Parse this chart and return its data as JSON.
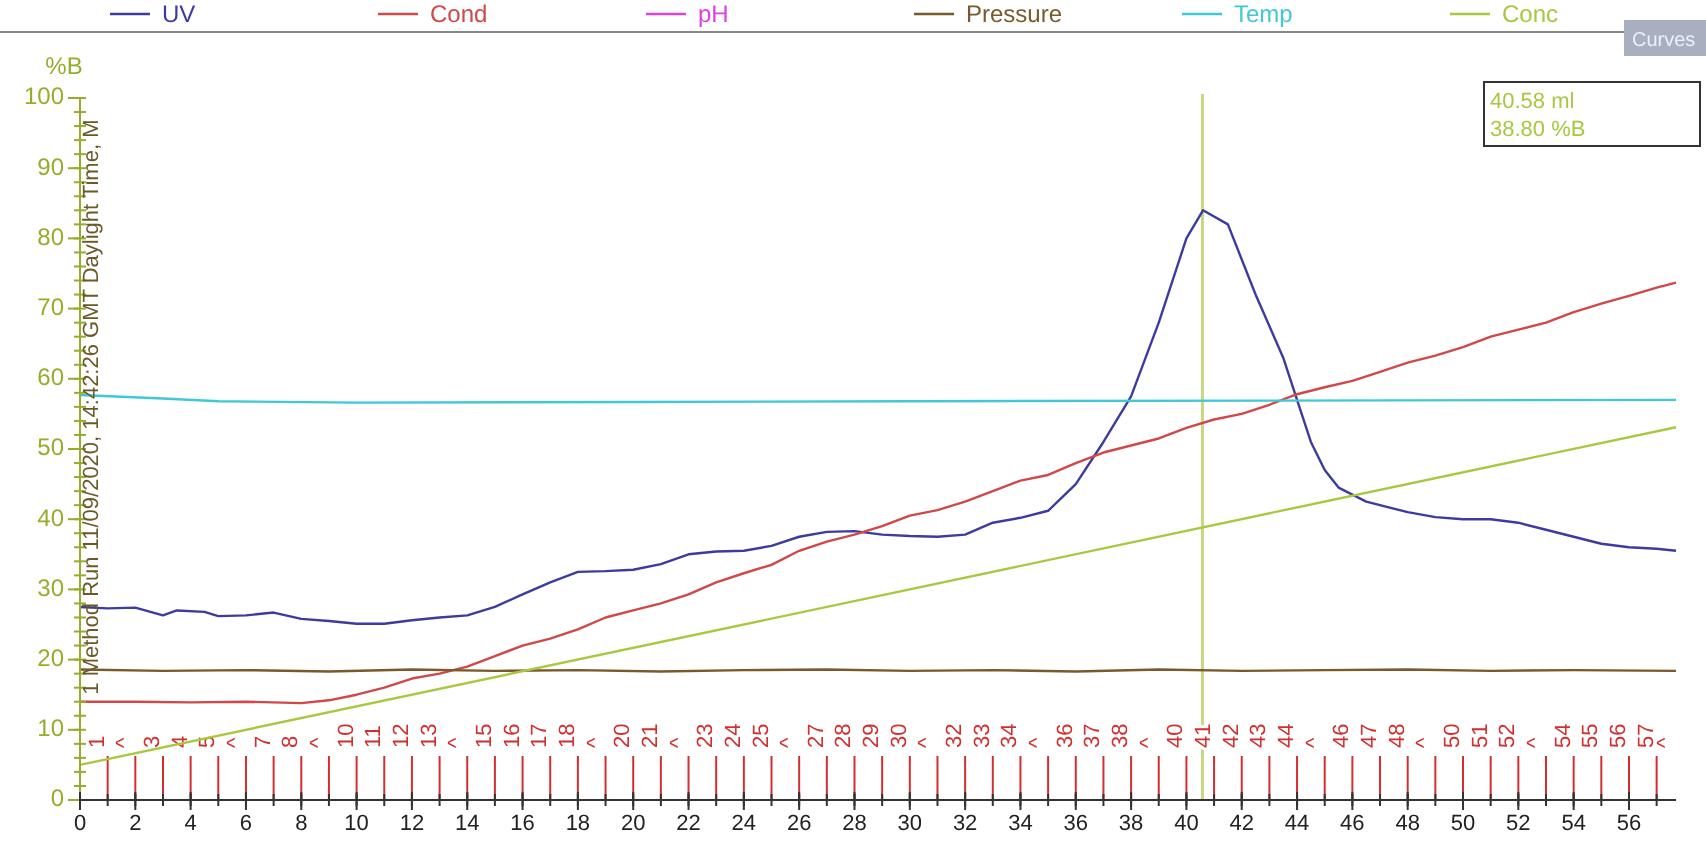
{
  "chart_data": {
    "type": "line",
    "ylabel": "%B",
    "xlim": [
      0,
      57.7
    ],
    "ylim": [
      0,
      100
    ],
    "xticks": [
      0,
      2,
      4,
      6,
      8,
      10,
      12,
      14,
      16,
      18,
      20,
      22,
      24,
      26,
      28,
      30,
      32,
      34,
      36,
      38,
      40,
      42,
      44,
      46,
      48,
      50,
      52,
      54,
      56
    ],
    "yticks": [
      0,
      10,
      20,
      30,
      40,
      50,
      60,
      70,
      80,
      90,
      100
    ],
    "legend": "top",
    "grid": false,
    "marker": "none",
    "line_style": "solid",
    "series": [
      {
        "name": "UV",
        "color": "#3c3ca0",
        "x": [
          0,
          1,
          2,
          3,
          3.5,
          4.5,
          5,
          6,
          7,
          8,
          9,
          10,
          11,
          12,
          13,
          14,
          15,
          16,
          17,
          18,
          19,
          20,
          21,
          22,
          23,
          24,
          25,
          26,
          27,
          28,
          29,
          30,
          31,
          32,
          33,
          34,
          35,
          36,
          37,
          38,
          39,
          40,
          40.6,
          41.5,
          42.5,
          43.5,
          44,
          44.5,
          45,
          45.5,
          46.5,
          48,
          49,
          50,
          51,
          52,
          53,
          54,
          55,
          56,
          57,
          57.7
        ],
        "values": [
          27.5,
          27.3,
          27.4,
          26.3,
          27,
          26.8,
          26.2,
          26.3,
          26.7,
          25.8,
          25.5,
          25.1,
          25.1,
          25.6,
          26,
          26.3,
          27.5,
          29.3,
          31,
          32.5,
          32.6,
          32.8,
          33.6,
          35,
          35.4,
          35.5,
          36.2,
          37.5,
          38.2,
          38.3,
          37.8,
          37.6,
          37.5,
          37.8,
          39.5,
          40.2,
          41.2,
          45,
          51,
          57.5,
          68,
          80,
          84,
          82,
          72,
          63,
          57,
          51,
          47,
          44.5,
          42.5,
          41,
          40.3,
          40,
          40,
          39.5,
          38.5,
          37.5,
          36.5,
          36,
          35.8,
          35.5
        ]
      },
      {
        "name": "Cond",
        "color": "#d04848",
        "x": [
          0,
          2,
          4,
          6,
          8,
          9,
          10,
          11,
          12,
          13,
          14,
          15,
          16,
          17,
          18,
          19,
          20,
          21,
          22,
          23,
          24,
          25,
          26,
          27,
          28,
          29,
          30,
          31,
          32,
          33,
          34,
          35,
          36,
          37,
          38,
          39,
          40,
          41,
          42,
          43,
          44,
          45,
          46,
          47,
          48,
          49,
          50,
          51,
          52,
          53,
          54,
          55,
          56,
          57,
          57.7
        ],
        "values": [
          14,
          14,
          13.9,
          14,
          13.8,
          14.2,
          15,
          16,
          17.3,
          18,
          19,
          20.5,
          22,
          23,
          24.3,
          26,
          27,
          28,
          29.3,
          31,
          32.3,
          33.5,
          35.5,
          36.8,
          37.8,
          39,
          40.5,
          41.3,
          42.5,
          44,
          45.5,
          46.3,
          48,
          49.5,
          50.5,
          51.5,
          53,
          54.2,
          55,
          56.3,
          57.8,
          58.8,
          59.7,
          61,
          62.3,
          63.3,
          64.5,
          66,
          67,
          68,
          69.5,
          70.7,
          71.8,
          73,
          73.7
        ]
      },
      {
        "name": "pH",
        "color": "#e040e0"
      },
      {
        "name": "Pressure",
        "color": "#7a5a2a",
        "x": [
          0,
          3,
          6,
          9,
          12,
          15,
          18,
          21,
          24,
          27,
          30,
          33,
          36,
          39,
          42,
          45,
          48,
          51,
          54,
          57.7
        ],
        "values": [
          18.6,
          18.4,
          18.5,
          18.3,
          18.6,
          18.4,
          18.5,
          18.3,
          18.5,
          18.6,
          18.4,
          18.5,
          18.3,
          18.6,
          18.4,
          18.5,
          18.6,
          18.4,
          18.5,
          18.4
        ]
      },
      {
        "name": "Temp",
        "color": "#40c8d8",
        "x": [
          0,
          3,
          5,
          10,
          20,
          30,
          57.7
        ],
        "values": [
          57.7,
          57.2,
          56.8,
          56.6,
          56.7,
          56.8,
          57
        ]
      },
      {
        "name": "Conc",
        "color": "#a8c840",
        "x": [
          0,
          57.7
        ],
        "values": [
          5,
          53.1
        ]
      }
    ],
    "ref_lines": [
      {
        "axis": "x",
        "value": 40.58,
        "color": "#c8d880"
      },
      {
        "axis": "x",
        "value": 1,
        "label": "1",
        "color": "#d03030"
      },
      {
        "axis": "x",
        "value": 2,
        "label": "^",
        "color": "#d03030"
      },
      {
        "axis": "x",
        "value": 3,
        "label": "3",
        "color": "#d03030"
      },
      {
        "axis": "x",
        "value": 4,
        "label": "4",
        "color": "#d03030"
      },
      {
        "axis": "x",
        "value": 5,
        "label": "5",
        "color": "#d03030"
      },
      {
        "axis": "x",
        "value": 6,
        "label": "^",
        "color": "#d03030"
      },
      {
        "axis": "x",
        "value": 7,
        "label": "7",
        "color": "#d03030"
      },
      {
        "axis": "x",
        "value": 8,
        "label": "8",
        "color": "#d03030"
      },
      {
        "axis": "x",
        "value": 9,
        "label": "^",
        "color": "#d03030"
      },
      {
        "axis": "x",
        "value": 10,
        "label": "10",
        "color": "#d03030"
      },
      {
        "axis": "x",
        "value": 11,
        "label": "11",
        "color": "#d03030"
      },
      {
        "axis": "x",
        "value": 12,
        "label": "12",
        "color": "#d03030"
      },
      {
        "axis": "x",
        "value": 13,
        "label": "13",
        "color": "#d03030"
      },
      {
        "axis": "x",
        "value": 14,
        "label": "^",
        "color": "#d03030"
      },
      {
        "axis": "x",
        "value": 15,
        "label": "15",
        "color": "#d03030"
      },
      {
        "axis": "x",
        "value": 16,
        "label": "16",
        "color": "#d03030"
      },
      {
        "axis": "x",
        "value": 17,
        "label": "17",
        "color": "#d03030"
      },
      {
        "axis": "x",
        "value": 18,
        "label": "18",
        "color": "#d03030"
      },
      {
        "axis": "x",
        "value": 19,
        "label": "^",
        "color": "#d03030"
      },
      {
        "axis": "x",
        "value": 20,
        "label": "20",
        "color": "#d03030"
      },
      {
        "axis": "x",
        "value": 21,
        "label": "21",
        "color": "#d03030"
      },
      {
        "axis": "x",
        "value": 22,
        "label": "^",
        "color": "#d03030"
      },
      {
        "axis": "x",
        "value": 23,
        "label": "23",
        "color": "#d03030"
      },
      {
        "axis": "x",
        "value": 24,
        "label": "24",
        "color": "#d03030"
      },
      {
        "axis": "x",
        "value": 25,
        "label": "25",
        "color": "#d03030"
      },
      {
        "axis": "x",
        "value": 26,
        "label": "^",
        "color": "#d03030"
      },
      {
        "axis": "x",
        "value": 27,
        "label": "27",
        "color": "#d03030"
      },
      {
        "axis": "x",
        "value": 28,
        "label": "28",
        "color": "#d03030"
      },
      {
        "axis": "x",
        "value": 29,
        "label": "29",
        "color": "#d03030"
      },
      {
        "axis": "x",
        "value": 30,
        "label": "30",
        "color": "#d03030"
      },
      {
        "axis": "x",
        "value": 31,
        "label": "^",
        "color": "#d03030"
      },
      {
        "axis": "x",
        "value": 32,
        "label": "32",
        "color": "#d03030"
      },
      {
        "axis": "x",
        "value": 33,
        "label": "33",
        "color": "#d03030"
      },
      {
        "axis": "x",
        "value": 34,
        "label": "34",
        "color": "#d03030"
      },
      {
        "axis": "x",
        "value": 35,
        "label": "^",
        "color": "#d03030"
      },
      {
        "axis": "x",
        "value": 36,
        "label": "36",
        "color": "#d03030"
      },
      {
        "axis": "x",
        "value": 37,
        "label": "37",
        "color": "#d03030"
      },
      {
        "axis": "x",
        "value": 38,
        "label": "38",
        "color": "#d03030"
      },
      {
        "axis": "x",
        "value": 39,
        "label": "^",
        "color": "#d03030"
      },
      {
        "axis": "x",
        "value": 40,
        "label": "40",
        "color": "#d03030"
      },
      {
        "axis": "x",
        "value": 41,
        "label": "41",
        "color": "#d03030"
      },
      {
        "axis": "x",
        "value": 42,
        "label": "42",
        "color": "#d03030"
      },
      {
        "axis": "x",
        "value": 43,
        "label": "43",
        "color": "#d03030"
      },
      {
        "axis": "x",
        "value": 44,
        "label": "44",
        "color": "#d03030"
      },
      {
        "axis": "x",
        "value": 45,
        "label": "^",
        "color": "#d03030"
      },
      {
        "axis": "x",
        "value": 46,
        "label": "46",
        "color": "#d03030"
      },
      {
        "axis": "x",
        "value": 47,
        "label": "47",
        "color": "#d03030"
      },
      {
        "axis": "x",
        "value": 48,
        "label": "48",
        "color": "#d03030"
      },
      {
        "axis": "x",
        "value": 49,
        "label": "^",
        "color": "#d03030"
      },
      {
        "axis": "x",
        "value": 50,
        "label": "50",
        "color": "#d03030"
      },
      {
        "axis": "x",
        "value": 51,
        "label": "51",
        "color": "#d03030"
      },
      {
        "axis": "x",
        "value": 52,
        "label": "52",
        "color": "#d03030"
      },
      {
        "axis": "x",
        "value": 53,
        "label": "^",
        "color": "#d03030"
      },
      {
        "axis": "x",
        "value": 54,
        "label": "54",
        "color": "#d03030"
      },
      {
        "axis": "x",
        "value": 55,
        "label": "55",
        "color": "#d03030"
      },
      {
        "axis": "x",
        "value": 56,
        "label": "56",
        "color": "#d03030"
      },
      {
        "axis": "x",
        "value": 57,
        "label": "57",
        "color": "#d03030"
      }
    ],
    "annotations": [
      "40.58 ml",
      "38.80 %B",
      "1 Method Run 11/09/2020, 14:42:26 GMT Daylight Time, M",
      "Curves",
      "^"
    ]
  }
}
